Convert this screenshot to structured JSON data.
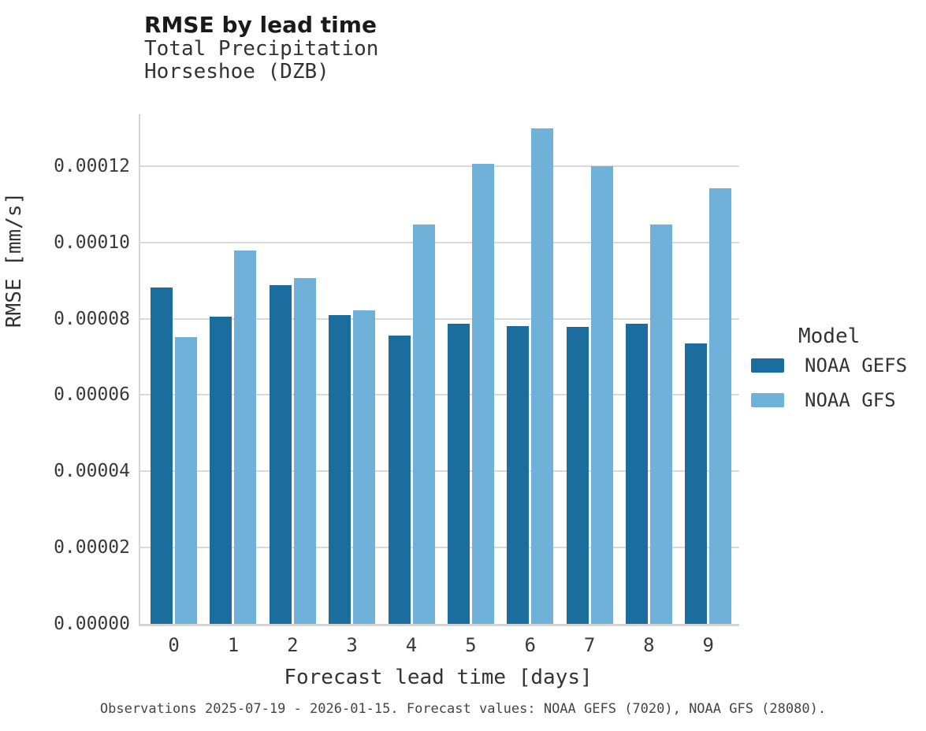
{
  "header": {
    "title": "RMSE by lead time",
    "subtitle_line1": "Total Precipitation",
    "subtitle_line2": "Horseshoe (DZB)"
  },
  "legend": {
    "title": "Model",
    "entries": [
      {
        "label": "NOAA GEFS",
        "color": "#1a6d9c"
      },
      {
        "label": "NOAA GFS",
        "color": "#6fb1d9"
      }
    ]
  },
  "footer": {
    "caption": "Observations 2025-07-19 - 2026-01-15. Forecast values: NOAA GEFS (7020), NOAA GFS (28080)."
  },
  "colors": {
    "gefs": "#1a6d9c",
    "gfs": "#6fb1d9",
    "gridline": "#d9d9d9",
    "spine": "#d4d4d4",
    "title_text": "#1a1a1a",
    "tick_text": "#3a3a3a",
    "caption_text": "#454545"
  },
  "chart_data": {
    "type": "bar",
    "title": "RMSE by lead time",
    "subtitle": [
      "Total Precipitation",
      "Horseshoe (DZB)"
    ],
    "categories": [
      "0",
      "1",
      "2",
      "3",
      "4",
      "5",
      "6",
      "7",
      "8",
      "9"
    ],
    "series": [
      {
        "name": "NOAA GEFS",
        "color": "#1a6d9c",
        "values": [
          8.81e-05,
          8.05e-05,
          8.87e-05,
          8.1e-05,
          7.55e-05,
          7.87e-05,
          7.8e-05,
          7.78e-05,
          7.86e-05,
          7.36e-05
        ]
      },
      {
        "name": "NOAA GFS",
        "color": "#6fb1d9",
        "values": [
          7.52e-05,
          9.78e-05,
          9.06e-05,
          8.21e-05,
          0.0001048,
          0.0001206,
          0.0001299,
          0.0001199,
          0.0001046,
          0.0001141
        ]
      }
    ],
    "xlabel": "Forecast lead time [days]",
    "ylabel": "RMSE [mm/s]",
    "ylim": [
      0,
      0.000134
    ],
    "yticks": [
      0,
      2e-05,
      4e-05,
      6e-05,
      8e-05,
      0.0001,
      0.00012
    ],
    "ytick_labels": [
      "0.00000",
      "0.00002",
      "0.00004",
      "0.00006",
      "0.00008",
      "0.00010",
      "0.00012"
    ],
    "grid": "horizontal",
    "legend_title": "Model",
    "legend_position": "right"
  }
}
